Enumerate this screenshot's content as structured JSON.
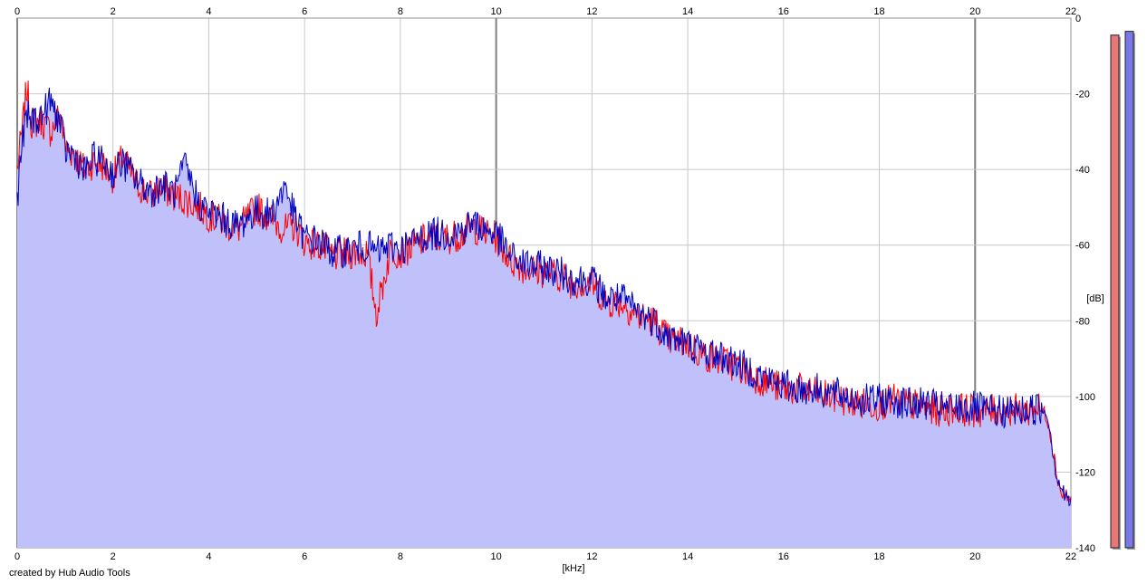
{
  "credit": "created by Hub Audio Tools",
  "colors": {
    "background": "#ffffff",
    "grid_light": "#c8c8c8",
    "grid_dark": "#808080",
    "fill": "#c0c0fa",
    "left_channel": "#ff0000",
    "right_channel": "#0000c0",
    "meter_left": "#e87878",
    "meter_right": "#7878e8",
    "meter_shadow": "#a0a0a0"
  },
  "chart_data": {
    "type": "area",
    "title": "",
    "xlabel": "[kHz]",
    "ylabel": "[dB]",
    "xlim": [
      0,
      22
    ],
    "ylim": [
      -140,
      0
    ],
    "x_ticks": [
      "0",
      "2",
      "4",
      "6",
      "8",
      "10",
      "12",
      "14",
      "16",
      "18",
      "20",
      "22"
    ],
    "y_ticks": [
      "0",
      "-20",
      "-40",
      "-60",
      "-80",
      "-100",
      "-120",
      "-140"
    ],
    "grid": true,
    "series": [
      {
        "channel": "left",
        "color": "#ff0000",
        "x": [
          0,
          0.1,
          0.2,
          0.3,
          0.5,
          0.7,
          0.9,
          1.0,
          1.2,
          1.4,
          1.6,
          1.8,
          2.0,
          2.2,
          2.5,
          2.8,
          3.0,
          3.3,
          3.5,
          3.8,
          4.0,
          4.3,
          4.6,
          5.0,
          5.3,
          5.6,
          5.8,
          6.0,
          6.3,
          6.6,
          7.0,
          7.3,
          7.5,
          7.8,
          8.0,
          8.3,
          8.6,
          9.0,
          9.3,
          9.5,
          9.8,
          10.0,
          10.3,
          10.6,
          11.0,
          11.3,
          11.6,
          12.0,
          12.3,
          12.6,
          13.0,
          13.3,
          13.6,
          14.0,
          14.3,
          14.6,
          15.0,
          15.3,
          15.6,
          16.0,
          16.3,
          16.6,
          17.0,
          17.3,
          17.6,
          18.0,
          18.3,
          18.6,
          19.0,
          19.3,
          19.6,
          20.0,
          20.3,
          20.6,
          21.0,
          21.3,
          21.5,
          21.6,
          21.7,
          21.8,
          21.9,
          22.0
        ],
        "values": [
          -40,
          -30,
          -18,
          -28,
          -27,
          -30,
          -25,
          -34,
          -36,
          -40,
          -38,
          -39,
          -42,
          -37,
          -44,
          -47,
          -45,
          -47,
          -48,
          -50,
          -52,
          -54,
          -56,
          -50,
          -53,
          -56,
          -55,
          -59,
          -60,
          -63,
          -62,
          -62,
          -78,
          -61,
          -62,
          -60,
          -58,
          -58,
          -57,
          -55,
          -57,
          -58,
          -64,
          -66,
          -67,
          -68,
          -70,
          -70,
          -75,
          -75,
          -79,
          -80,
          -85,
          -86,
          -89,
          -90,
          -92,
          -94,
          -96,
          -98,
          -98,
          -99,
          -100,
          -101,
          -102,
          -102,
          -101,
          -102,
          -103,
          -104,
          -103,
          -104,
          -104,
          -103,
          -104,
          -103,
          -105,
          -112,
          -120,
          -126,
          -126,
          -128
        ]
      },
      {
        "channel": "right",
        "color": "#0000c0",
        "x": [
          0,
          0.1,
          0.2,
          0.3,
          0.5,
          0.7,
          0.9,
          1.0,
          1.2,
          1.4,
          1.6,
          1.8,
          2.0,
          2.2,
          2.5,
          2.8,
          3.0,
          3.3,
          3.5,
          3.8,
          4.0,
          4.3,
          4.6,
          5.0,
          5.3,
          5.6,
          5.8,
          6.0,
          6.3,
          6.6,
          7.0,
          7.3,
          7.5,
          7.8,
          8.0,
          8.3,
          8.6,
          9.0,
          9.3,
          9.5,
          9.8,
          10.0,
          10.3,
          10.6,
          11.0,
          11.3,
          11.6,
          12.0,
          12.3,
          12.6,
          13.0,
          13.3,
          13.6,
          14.0,
          14.3,
          14.6,
          15.0,
          15.3,
          15.6,
          16.0,
          16.3,
          16.6,
          17.0,
          17.3,
          17.6,
          18.0,
          18.3,
          18.6,
          19.0,
          19.3,
          19.6,
          20.0,
          20.3,
          20.6,
          21.0,
          21.3,
          21.5,
          21.6,
          21.7,
          21.8,
          21.9,
          22.0
        ],
        "values": [
          -48,
          -33,
          -26,
          -27,
          -26,
          -22,
          -28,
          -35,
          -36,
          -41,
          -37,
          -38,
          -41,
          -38,
          -43,
          -46,
          -44,
          -46,
          -39,
          -49,
          -51,
          -53,
          -55,
          -51,
          -52,
          -44,
          -53,
          -58,
          -59,
          -62,
          -61,
          -60,
          -62,
          -60,
          -61,
          -59,
          -57,
          -57,
          -56,
          -54,
          -56,
          -57,
          -63,
          -65,
          -66,
          -67,
          -69,
          -69,
          -74,
          -74,
          -78,
          -80,
          -84,
          -86,
          -88,
          -89,
          -91,
          -93,
          -95,
          -97,
          -98,
          -98,
          -99,
          -100,
          -101,
          -101,
          -101,
          -102,
          -102,
          -103,
          -103,
          -103,
          -104,
          -104,
          -104,
          -103,
          -104,
          -112,
          -121,
          -124,
          -127,
          -128
        ]
      }
    ],
    "level_meters": [
      {
        "channel": "left",
        "level_db": -4.5
      },
      {
        "channel": "right",
        "level_db": -3.5
      }
    ]
  }
}
